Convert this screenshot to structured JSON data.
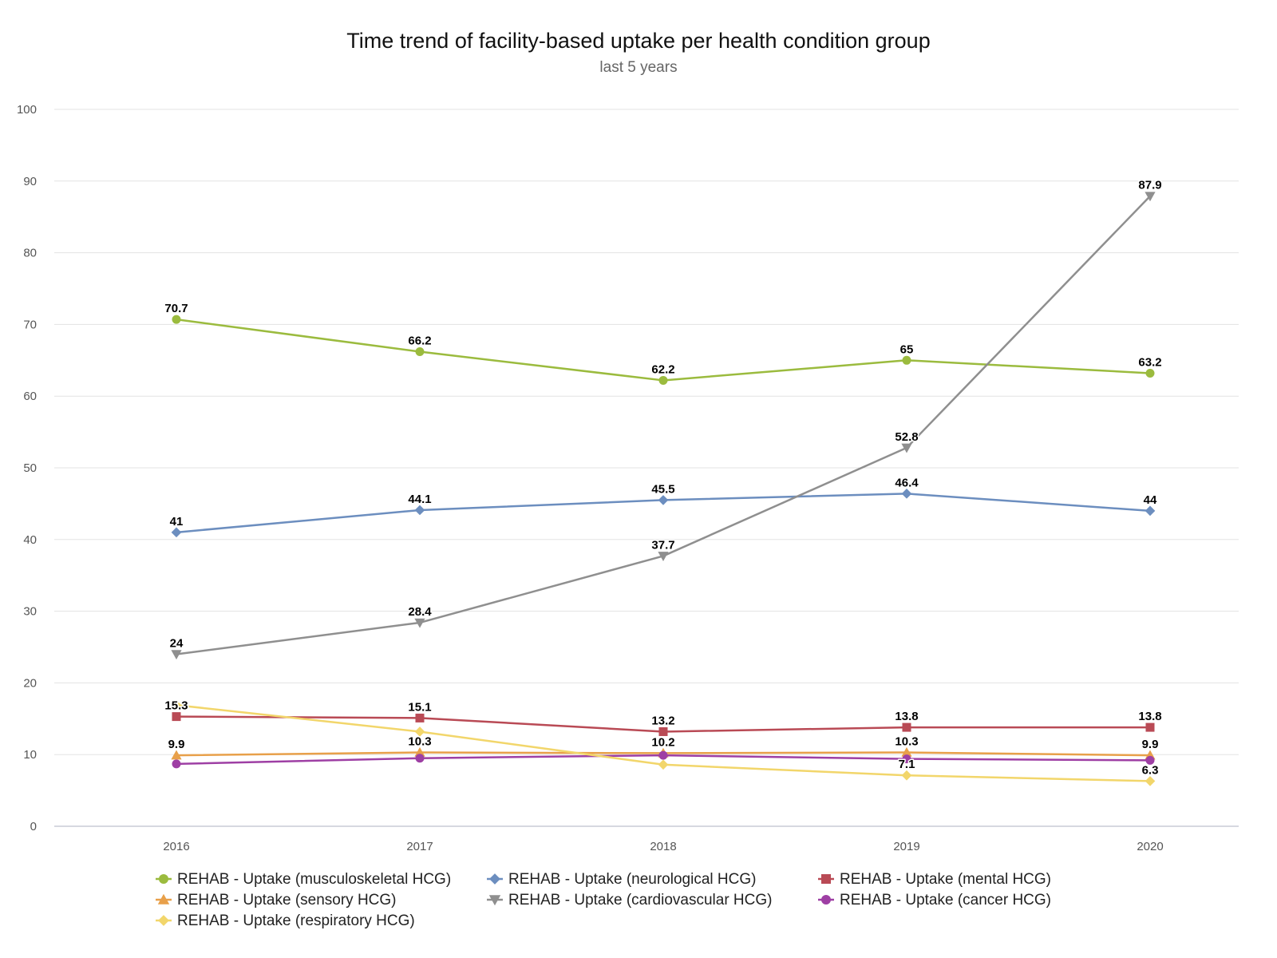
{
  "chart_data": {
    "type": "line",
    "title": "Time trend of facility-based uptake per health condition group",
    "subtitle": "last 5 years",
    "xlabel": "",
    "ylabel": "",
    "categories": [
      "2016",
      "2017",
      "2018",
      "2019",
      "2020"
    ],
    "ylim": [
      0,
      100
    ],
    "yticks": [
      0,
      10,
      20,
      30,
      40,
      50,
      60,
      70,
      80,
      90,
      100
    ],
    "grid": true,
    "legend_position": "bottom",
    "series": [
      {
        "name": "REHAB - Uptake (musculoskeletal HCG)",
        "color": "#9bbb3e",
        "marker": "circle",
        "values": [
          70.7,
          66.2,
          62.2,
          65,
          63.2
        ],
        "labels": [
          "70.7",
          "66.2",
          "62.2",
          "65",
          "63.2"
        ]
      },
      {
        "name": "REHAB - Uptake (neurological HCG)",
        "color": "#6c8ebf",
        "marker": "diamond",
        "values": [
          41,
          44.1,
          45.5,
          46.4,
          44
        ],
        "labels": [
          "41",
          "44.1",
          "45.5",
          "46.4",
          "44"
        ]
      },
      {
        "name": "REHAB - Uptake (mental HCG)",
        "color": "#b94a55",
        "marker": "square",
        "values": [
          15.3,
          15.1,
          13.2,
          13.8,
          13.8
        ],
        "labels": [
          "15.3",
          "15.1",
          "13.2",
          "13.8",
          "13.8"
        ]
      },
      {
        "name": "REHAB - Uptake (sensory HCG)",
        "color": "#e8a04a",
        "marker": "triangle-up",
        "values": [
          9.9,
          10.3,
          10.2,
          10.3,
          9.9
        ],
        "labels": [
          "9.9",
          "10.3",
          "10.2",
          "10.3",
          "9.9"
        ]
      },
      {
        "name": "REHAB - Uptake (cardiovascular HCG)",
        "color": "#8f8f8f",
        "marker": "triangle-down",
        "values": [
          24,
          28.4,
          37.7,
          52.8,
          87.9
        ],
        "labels": [
          "24",
          "28.4",
          "37.7",
          "52.8",
          "87.9"
        ]
      },
      {
        "name": "REHAB - Uptake (cancer HCG)",
        "color": "#9e3fa4",
        "marker": "circle",
        "values": [
          8.7,
          9.5,
          9.9,
          9.4,
          9.2
        ],
        "labels": []
      },
      {
        "name": "REHAB - Uptake (respiratory HCG)",
        "color": "#f2d66b",
        "marker": "diamond",
        "values": [
          16.9,
          13.2,
          8.6,
          7.1,
          6.3
        ],
        "labels": [
          "",
          "",
          "",
          "7.1",
          "6.3"
        ]
      }
    ]
  }
}
